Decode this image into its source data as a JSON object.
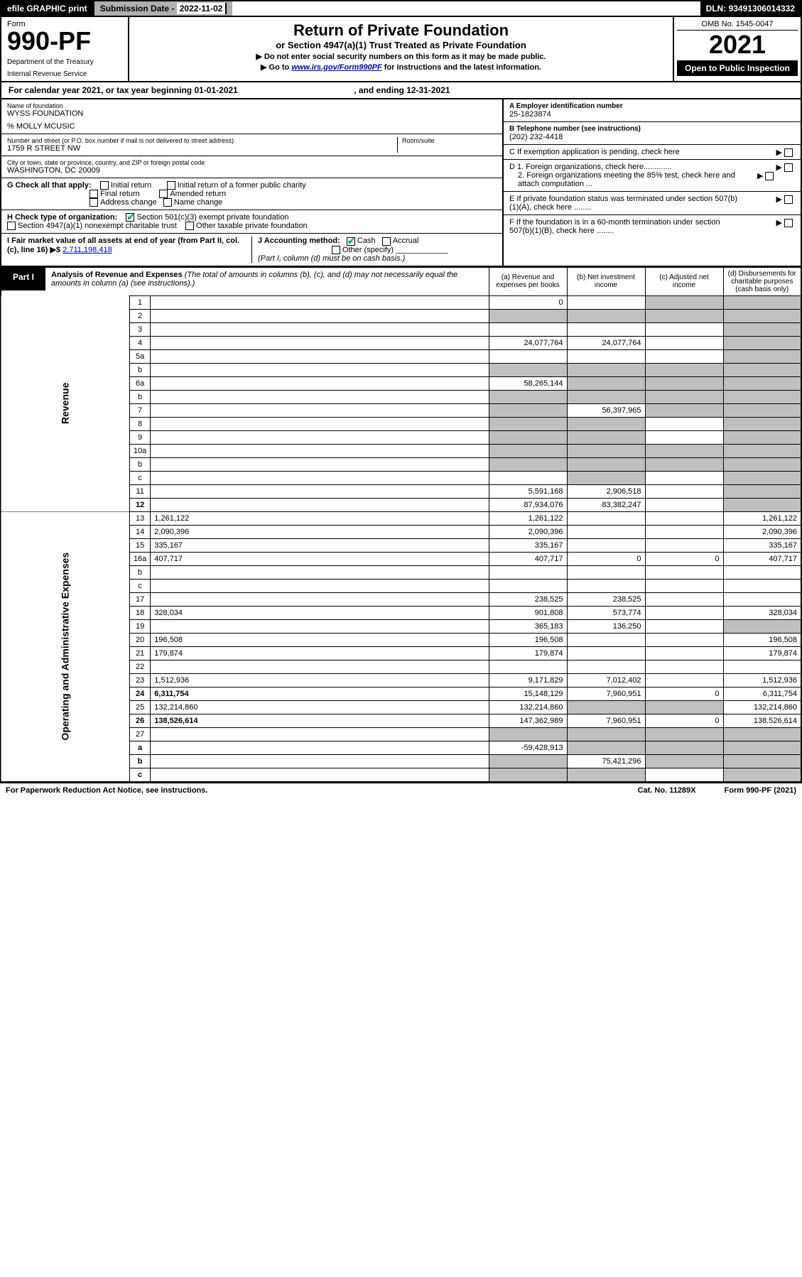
{
  "topbar": {
    "efile": "efile GRAPHIC print",
    "sub_label": "Submission Date - ",
    "sub_date": "2022-11-02",
    "dln_label": "DLN: ",
    "dln": "93491306014332"
  },
  "header": {
    "form_label": "Form",
    "form_num": "990-PF",
    "dept1": "Department of the Treasury",
    "dept2": "Internal Revenue Service",
    "title": "Return of Private Foundation",
    "subtitle": "or Section 4947(a)(1) Trust Treated as Private Foundation",
    "note1": "▶ Do not enter social security numbers on this form as it may be made public.",
    "note2_pre": "▶ Go to ",
    "note2_link": "www.irs.gov/Form990PF",
    "note2_post": " for instructions and the latest information.",
    "omb": "OMB No. 1545-0047",
    "year": "2021",
    "open": "Open to Public Inspection"
  },
  "calendar": {
    "text_pre": "For calendar year 2021, or tax year beginning ",
    "begin": "01-01-2021",
    "text_mid": " , and ending ",
    "end": "12-31-2021"
  },
  "foundation": {
    "name_lbl": "Name of foundation",
    "name": "WYSS FOUNDATION",
    "care_of": "% MOLLY MCUSIC",
    "addr_lbl": "Number and street (or P.O. box number if mail is not delivered to street address)",
    "addr": "1759 R STREET NW",
    "room_lbl": "Room/suite",
    "city_lbl": "City or town, state or province, country, and ZIP or foreign postal code",
    "city": "WASHINGTON, DC  20009",
    "ein_lbl": "A Employer identification number",
    "ein": "25-1823874",
    "tel_lbl": "B Telephone number (see instructions)",
    "tel": "(202) 232-4418",
    "c_lbl": "C  If exemption application is pending, check here",
    "d1_lbl": "D 1. Foreign organizations, check here.............",
    "d2_lbl": "2. Foreign organizations meeting the 85% test, check here and attach computation ...",
    "e_lbl": "E  If private foundation status was terminated under section 507(b)(1)(A), check here ........",
    "f_lbl": "F  If the foundation is in a 60-month termination under section 507(b)(1)(B), check here ........"
  },
  "g": {
    "lbl": "G Check all that apply:",
    "initial": "Initial return",
    "initial_former": "Initial return of a former public charity",
    "final": "Final return",
    "amended": "Amended return",
    "address": "Address change",
    "name": "Name change"
  },
  "h": {
    "lbl": "H Check type of organization:",
    "501c3": "Section 501(c)(3) exempt private foundation",
    "4947": "Section 4947(a)(1) nonexempt charitable trust",
    "other": "Other taxable private foundation"
  },
  "i": {
    "lbl": "I Fair market value of all assets at end of year (from Part II, col. (c), line 16) ▶$",
    "val": "2,711,198,418"
  },
  "j": {
    "lbl": "J Accounting method:",
    "cash": "Cash",
    "accrual": "Accrual",
    "other": "Other (specify)",
    "note": "(Part I, column (d) must be on cash basis.)"
  },
  "part1": {
    "tab": "Part I",
    "title": "Analysis of Revenue and Expenses",
    "note": " (The total of amounts in columns (b), (c), and (d) may not necessarily equal the amounts in column (a) (see instructions).)",
    "col_a": "(a)  Revenue and expenses per books",
    "col_b": "(b)  Net investment income",
    "col_c": "(c)  Adjusted net income",
    "col_d": "(d)  Disbursements for charitable purposes (cash basis only)"
  },
  "vlabels": {
    "revenue": "Revenue",
    "expenses": "Operating and Administrative Expenses"
  },
  "rows": [
    {
      "n": "1",
      "d": "",
      "a": "0",
      "b": "",
      "c": "",
      "grey": [
        "c",
        "d"
      ]
    },
    {
      "n": "2",
      "d": "",
      "a": "",
      "b": "",
      "c": "",
      "grey": [
        "a",
        "b",
        "c",
        "d"
      ],
      "bold_not": true
    },
    {
      "n": "3",
      "d": "",
      "a": "",
      "b": "",
      "c": "",
      "grey": [
        "d"
      ]
    },
    {
      "n": "4",
      "d": "",
      "a": "24,077,764",
      "b": "24,077,764",
      "c": "",
      "grey": [
        "d"
      ]
    },
    {
      "n": "5a",
      "d": "",
      "a": "",
      "b": "",
      "c": "",
      "grey": [
        "d"
      ]
    },
    {
      "n": "b",
      "d": "",
      "a": "",
      "b": "",
      "c": "",
      "grey": [
        "a",
        "b",
        "c",
        "d"
      ]
    },
    {
      "n": "6a",
      "d": "",
      "a": "58,265,144",
      "b": "",
      "c": "",
      "grey": [
        "b",
        "c",
        "d"
      ]
    },
    {
      "n": "b",
      "d": "",
      "a": "",
      "b": "",
      "c": "",
      "grey": [
        "a",
        "b",
        "c",
        "d"
      ]
    },
    {
      "n": "7",
      "d": "",
      "a": "",
      "b": "56,397,965",
      "c": "",
      "grey": [
        "a",
        "c",
        "d"
      ]
    },
    {
      "n": "8",
      "d": "",
      "a": "",
      "b": "",
      "c": "",
      "grey": [
        "a",
        "b",
        "d"
      ]
    },
    {
      "n": "9",
      "d": "",
      "a": "",
      "b": "",
      "c": "",
      "grey": [
        "a",
        "b",
        "d"
      ]
    },
    {
      "n": "10a",
      "d": "",
      "a": "",
      "b": "",
      "c": "",
      "grey": [
        "a",
        "b",
        "c",
        "d"
      ]
    },
    {
      "n": "b",
      "d": "",
      "a": "",
      "b": "",
      "c": "",
      "grey": [
        "a",
        "b",
        "c",
        "d"
      ]
    },
    {
      "n": "c",
      "d": "",
      "a": "",
      "b": "",
      "c": "",
      "grey": [
        "b",
        "d"
      ]
    },
    {
      "n": "11",
      "d": "",
      "a": "5,591,168",
      "b": "2,906,518",
      "c": "",
      "grey": [
        "d"
      ]
    },
    {
      "n": "12",
      "d": "",
      "a": "87,934,076",
      "b": "83,382,247",
      "c": "",
      "grey": [
        "d"
      ],
      "bold": true
    },
    {
      "n": "13",
      "d": "1,261,122",
      "a": "1,261,122",
      "b": "",
      "c": ""
    },
    {
      "n": "14",
      "d": "2,090,396",
      "a": "2,090,396",
      "b": "",
      "c": ""
    },
    {
      "n": "15",
      "d": "335,167",
      "a": "335,167",
      "b": "",
      "c": ""
    },
    {
      "n": "16a",
      "d": "407,717",
      "a": "407,717",
      "b": "0",
      "c": "0"
    },
    {
      "n": "b",
      "d": "",
      "a": "",
      "b": "",
      "c": ""
    },
    {
      "n": "c",
      "d": "",
      "a": "",
      "b": "",
      "c": ""
    },
    {
      "n": "17",
      "d": "",
      "a": "238,525",
      "b": "238,525",
      "c": ""
    },
    {
      "n": "18",
      "d": "328,034",
      "a": "901,808",
      "b": "573,774",
      "c": ""
    },
    {
      "n": "19",
      "d": "",
      "a": "365,183",
      "b": "136,250",
      "c": "",
      "grey": [
        "d"
      ]
    },
    {
      "n": "20",
      "d": "196,508",
      "a": "196,508",
      "b": "",
      "c": ""
    },
    {
      "n": "21",
      "d": "179,874",
      "a": "179,874",
      "b": "",
      "c": ""
    },
    {
      "n": "22",
      "d": "",
      "a": "",
      "b": "",
      "c": ""
    },
    {
      "n": "23",
      "d": "1,512,936",
      "a": "9,171,829",
      "b": "7,012,402",
      "c": ""
    },
    {
      "n": "24",
      "d": "6,311,754",
      "a": "15,148,129",
      "b": "7,960,951",
      "c": "0",
      "bold": true
    },
    {
      "n": "25",
      "d": "132,214,860",
      "a": "132,214,860",
      "b": "",
      "c": "",
      "grey": [
        "b",
        "c"
      ]
    },
    {
      "n": "26",
      "d": "138,526,614",
      "a": "147,362,989",
      "b": "7,960,951",
      "c": "0",
      "bold": true
    },
    {
      "n": "27",
      "d": "",
      "a": "",
      "b": "",
      "c": "",
      "grey": [
        "a",
        "b",
        "c",
        "d"
      ]
    },
    {
      "n": "a",
      "d": "",
      "a": "-59,428,913",
      "b": "",
      "c": "",
      "grey": [
        "b",
        "c",
        "d"
      ],
      "bold": true
    },
    {
      "n": "b",
      "d": "",
      "a": "",
      "b": "75,421,296",
      "c": "",
      "grey": [
        "a",
        "c",
        "d"
      ],
      "bold": true
    },
    {
      "n": "c",
      "d": "",
      "a": "",
      "b": "",
      "c": "",
      "grey": [
        "a",
        "b",
        "d"
      ],
      "bold": true
    }
  ],
  "footer": {
    "left": "For Paperwork Reduction Act Notice, see instructions.",
    "mid": "Cat. No. 11289X",
    "right": "Form 990-PF (2021)"
  },
  "colors": {
    "grey_cell": "#c0c0c0",
    "link": "#0000cc",
    "check": "#00aa55"
  }
}
